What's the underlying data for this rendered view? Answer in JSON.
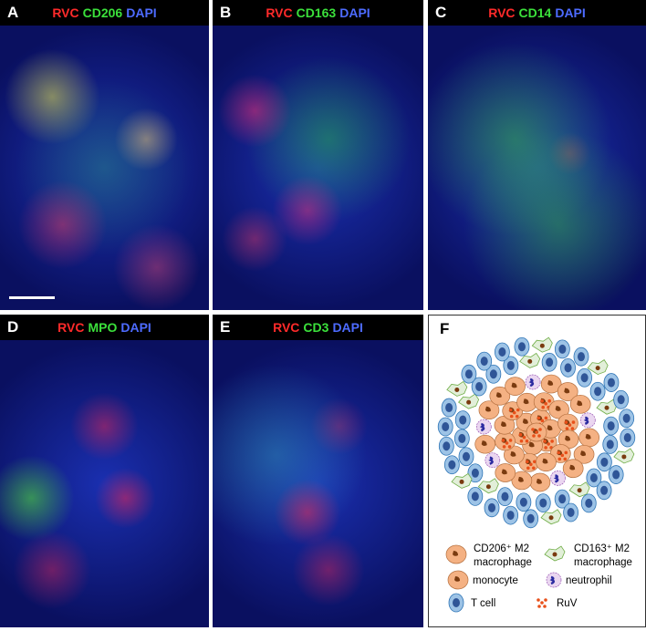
{
  "panels": [
    {
      "letter": "A",
      "stains": [
        {
          "text": "RVC",
          "color": "#ff2a2a"
        },
        {
          "text": "CD206",
          "color": "#3be03b"
        },
        {
          "text": "DAPI",
          "color": "#4d6bff"
        }
      ]
    },
    {
      "letter": "B",
      "stains": [
        {
          "text": "RVC",
          "color": "#ff2a2a"
        },
        {
          "text": "CD163",
          "color": "#3be03b"
        },
        {
          "text": "DAPI",
          "color": "#4d6bff"
        }
      ]
    },
    {
      "letter": "C",
      "stains": [
        {
          "text": "RVC",
          "color": "#ff2a2a"
        },
        {
          "text": "CD14",
          "color": "#3be03b"
        },
        {
          "text": "DAPI",
          "color": "#4d6bff"
        }
      ]
    },
    {
      "letter": "D",
      "stains": [
        {
          "text": "RVC",
          "color": "#ff2a2a"
        },
        {
          "text": "MPO",
          "color": "#3be03b"
        },
        {
          "text": "DAPI",
          "color": "#4d6bff"
        }
      ]
    },
    {
      "letter": "E",
      "stains": [
        {
          "text": "RVC",
          "color": "#ff2a2a"
        },
        {
          "text": "CD3",
          "color": "#3be03b"
        },
        {
          "text": "DAPI",
          "color": "#4d6bff"
        }
      ]
    }
  ],
  "diagram": {
    "letter": "F",
    "legend": [
      {
        "lines": [
          "CD206⁺ M2",
          "macrophage"
        ]
      },
      {
        "lines": [
          "CD163⁺ M2",
          "macrophage"
        ]
      },
      {
        "lines": [
          "monocyte"
        ]
      },
      {
        "lines": [
          "neutrophil"
        ]
      },
      {
        "lines": [
          "T cell"
        ]
      },
      {
        "lines": [
          "RuV"
        ]
      }
    ]
  }
}
